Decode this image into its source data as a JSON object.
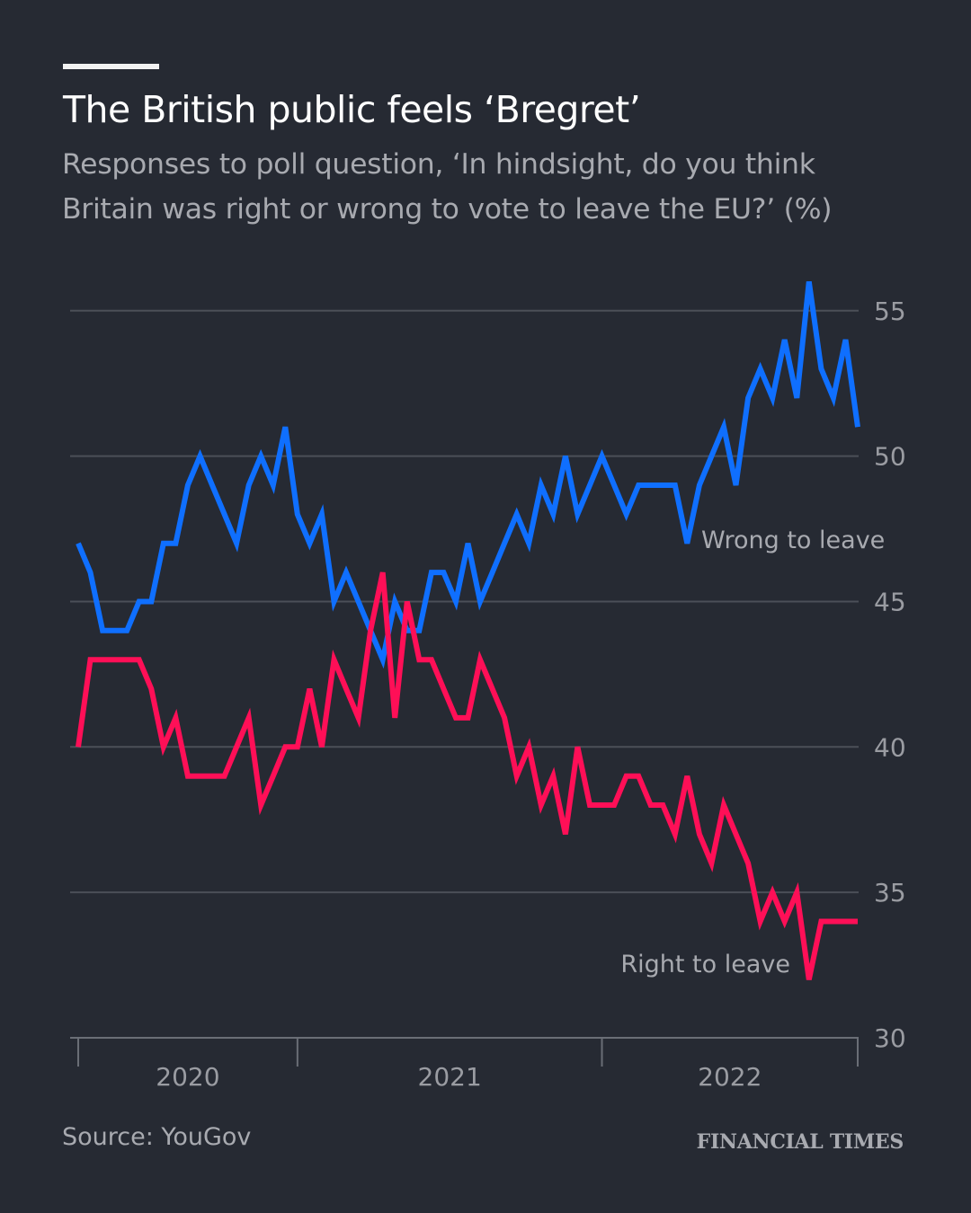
{
  "header": {
    "title": "The British public feels ‘Bregret’",
    "subtitle_line1": "Responses to poll question, ‘In hindsight, do you think",
    "subtitle_line2": "Britain was right or wrong to vote to leave the EU?’ (%)"
  },
  "footer": {
    "source": "Source: YouGov",
    "logo": "FINANCIAL TIMES"
  },
  "colors": {
    "background": "#262a33",
    "wrong": "#0f6fff",
    "right": "#ff0f57",
    "grid": "#4b4f58",
    "text": "#a8aab0"
  },
  "chart_data": {
    "type": "line",
    "title": "The British public feels ‘Bregret’",
    "ylabel": "",
    "xlabel": "",
    "ylim": [
      30,
      56
    ],
    "y_ticks": [
      30,
      35,
      40,
      45,
      50,
      55
    ],
    "y_axis_side": "right",
    "grid": true,
    "x_tick_marks": [
      2021,
      2022
    ],
    "x_year_labels": [
      "2020",
      "2021",
      "2022"
    ],
    "x": [
      2020.28,
      2020.32,
      2020.36,
      2020.4,
      2020.44,
      2020.48,
      2020.52,
      2020.56,
      2020.6,
      2020.64,
      2020.68,
      2020.72,
      2020.76,
      2020.8,
      2020.84,
      2020.88,
      2020.92,
      2020.96,
      2021.0,
      2021.04,
      2021.08,
      2021.12,
      2021.16,
      2021.2,
      2021.24,
      2021.28,
      2021.32,
      2021.36,
      2021.4,
      2021.44,
      2021.48,
      2021.52,
      2021.56,
      2021.6,
      2021.64,
      2021.68,
      2021.72,
      2021.76,
      2021.8,
      2021.84,
      2021.88,
      2021.92,
      2021.96,
      2022.0,
      2022.04,
      2022.08,
      2022.12,
      2022.16,
      2022.2,
      2022.24,
      2022.28,
      2022.32,
      2022.36,
      2022.4,
      2022.44,
      2022.48,
      2022.52,
      2022.56,
      2022.6,
      2022.64,
      2022.68,
      2022.72,
      2022.76,
      2022.8,
      2022.84
    ],
    "series": [
      {
        "name": "Wrong to leave",
        "color": "#0f6fff",
        "values": [
          47,
          46,
          44,
          44,
          44,
          45,
          45,
          47,
          47,
          49,
          50,
          49,
          48,
          47,
          49,
          50,
          49,
          51,
          48,
          47,
          48,
          45,
          46,
          45,
          44,
          43,
          45,
          44,
          44,
          46,
          46,
          45,
          47,
          45,
          46,
          47,
          48,
          47,
          49,
          48,
          50,
          48,
          49,
          50,
          49,
          48,
          49,
          49,
          49,
          49,
          47,
          49,
          50,
          51,
          49,
          52,
          53,
          52,
          54,
          52,
          56,
          53,
          52,
          54,
          51
        ]
      },
      {
        "name": "Right to leave",
        "color": "#ff0f57",
        "values": [
          40,
          43,
          43,
          43,
          43,
          43,
          42,
          40,
          41,
          39,
          39,
          39,
          39,
          40,
          41,
          38,
          39,
          40,
          40,
          42,
          40,
          43,
          42,
          41,
          44,
          46,
          41,
          45,
          43,
          43,
          42,
          41,
          41,
          43,
          42,
          41,
          39,
          40,
          38,
          39,
          37,
          40,
          38,
          38,
          38,
          39,
          39,
          38,
          38,
          37,
          39,
          37,
          36,
          38,
          37,
          36,
          34,
          35,
          34,
          35,
          32,
          34,
          34,
          34,
          34
        ]
      }
    ]
  }
}
